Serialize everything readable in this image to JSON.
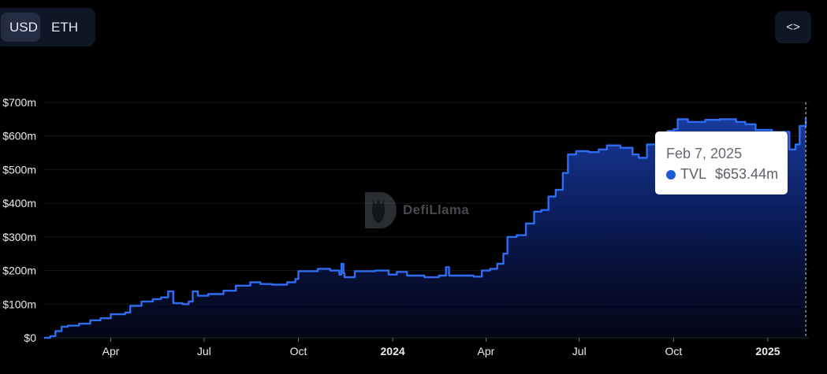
{
  "currency_toggle": {
    "usd_label": "USD",
    "eth_label": "ETH"
  },
  "embed_label": "<>",
  "watermark": {
    "text": "DefiLlama"
  },
  "tooltip": {
    "date": "Feb 7, 2025",
    "series": "TVL",
    "value": "$653.44m",
    "dot_color": "#1f5bd6"
  },
  "chart_data": {
    "type": "area",
    "title": "",
    "xlabel": "",
    "ylabel": "",
    "ylim": [
      0,
      700
    ],
    "y_unit": "m",
    "y_ticks": [
      {
        "value": 0,
        "label": "$0"
      },
      {
        "value": 100,
        "label": "$100m"
      },
      {
        "value": 200,
        "label": "$200m"
      },
      {
        "value": 300,
        "label": "$300m"
      },
      {
        "value": 400,
        "label": "$400m"
      },
      {
        "value": 500,
        "label": "$500m"
      },
      {
        "value": 600,
        "label": "$600m"
      },
      {
        "value": 700,
        "label": "$700m"
      }
    ],
    "x_range": [
      "2023-01-26",
      "2025-02-10"
    ],
    "x_ticks": [
      {
        "date": "2023-04-01",
        "label": "Apr",
        "bold": false
      },
      {
        "date": "2023-07-01",
        "label": "Jul",
        "bold": false
      },
      {
        "date": "2023-10-01",
        "label": "Oct",
        "bold": false
      },
      {
        "date": "2024-01-01",
        "label": "2024",
        "bold": true
      },
      {
        "date": "2024-04-01",
        "label": "Apr",
        "bold": false
      },
      {
        "date": "2024-07-01",
        "label": "Jul",
        "bold": false
      },
      {
        "date": "2024-10-01",
        "label": "Oct",
        "bold": false
      },
      {
        "date": "2025-01-01",
        "label": "2025",
        "bold": true
      }
    ],
    "grid": true,
    "line_color": "#2f6cf0",
    "series": [
      {
        "name": "TVL",
        "points": [
          [
            "2023-01-26",
            0
          ],
          [
            "2023-02-01",
            5
          ],
          [
            "2023-02-06",
            20
          ],
          [
            "2023-02-12",
            33
          ],
          [
            "2023-02-18",
            36
          ],
          [
            "2023-03-01",
            42
          ],
          [
            "2023-03-12",
            52
          ],
          [
            "2023-03-22",
            58
          ],
          [
            "2023-04-01",
            70
          ],
          [
            "2023-04-15",
            75
          ],
          [
            "2023-04-20",
            95
          ],
          [
            "2023-05-01",
            108
          ],
          [
            "2023-05-12",
            115
          ],
          [
            "2023-05-20",
            120
          ],
          [
            "2023-05-27",
            138
          ],
          [
            "2023-06-01",
            103
          ],
          [
            "2023-06-10",
            100
          ],
          [
            "2023-06-16",
            108
          ],
          [
            "2023-06-20",
            138
          ],
          [
            "2023-06-25",
            125
          ],
          [
            "2023-07-05",
            130
          ],
          [
            "2023-07-20",
            140
          ],
          [
            "2023-08-01",
            155
          ],
          [
            "2023-08-15",
            165
          ],
          [
            "2023-08-25",
            160
          ],
          [
            "2023-09-05",
            158
          ],
          [
            "2023-09-20",
            165
          ],
          [
            "2023-09-28",
            175
          ],
          [
            "2023-10-01",
            198
          ],
          [
            "2023-10-20",
            205
          ],
          [
            "2023-11-01",
            200
          ],
          [
            "2023-11-10",
            188
          ],
          [
            "2023-11-12",
            220
          ],
          [
            "2023-11-14",
            192
          ],
          [
            "2023-11-15",
            180
          ],
          [
            "2023-11-25",
            198
          ],
          [
            "2023-12-15",
            200
          ],
          [
            "2023-12-28",
            188
          ],
          [
            "2024-01-05",
            196
          ],
          [
            "2024-01-15",
            185
          ],
          [
            "2024-02-01",
            180
          ],
          [
            "2024-02-15",
            185
          ],
          [
            "2024-02-22",
            210
          ],
          [
            "2024-02-25",
            185
          ],
          [
            "2024-03-10",
            185
          ],
          [
            "2024-03-20",
            182
          ],
          [
            "2024-03-28",
            200
          ],
          [
            "2024-04-05",
            205
          ],
          [
            "2024-04-12",
            220
          ],
          [
            "2024-04-18",
            250
          ],
          [
            "2024-04-22",
            300
          ],
          [
            "2024-05-01",
            305
          ],
          [
            "2024-05-10",
            340
          ],
          [
            "2024-05-18",
            375
          ],
          [
            "2024-05-25",
            380
          ],
          [
            "2024-06-01",
            420
          ],
          [
            "2024-06-08",
            440
          ],
          [
            "2024-06-15",
            490
          ],
          [
            "2024-06-20",
            545
          ],
          [
            "2024-06-28",
            555
          ],
          [
            "2024-07-10",
            552
          ],
          [
            "2024-07-20",
            560
          ],
          [
            "2024-07-28",
            572
          ],
          [
            "2024-08-10",
            565
          ],
          [
            "2024-08-22",
            545
          ],
          [
            "2024-08-28",
            535
          ],
          [
            "2024-09-05",
            575
          ],
          [
            "2024-09-15",
            595
          ],
          [
            "2024-09-25",
            615
          ],
          [
            "2024-10-01",
            620
          ],
          [
            "2024-10-05",
            650
          ],
          [
            "2024-10-15",
            642
          ],
          [
            "2024-11-01",
            648
          ],
          [
            "2024-11-15",
            650
          ],
          [
            "2024-12-01",
            642
          ],
          [
            "2024-12-10",
            635
          ],
          [
            "2024-12-20",
            618
          ],
          [
            "2025-01-05",
            612
          ],
          [
            "2025-01-15",
            612
          ],
          [
            "2025-01-22",
            560
          ],
          [
            "2025-01-28",
            575
          ],
          [
            "2025-02-01",
            630
          ],
          [
            "2025-02-07",
            653.44
          ]
        ]
      }
    ],
    "hover_date": "2025-02-07"
  }
}
